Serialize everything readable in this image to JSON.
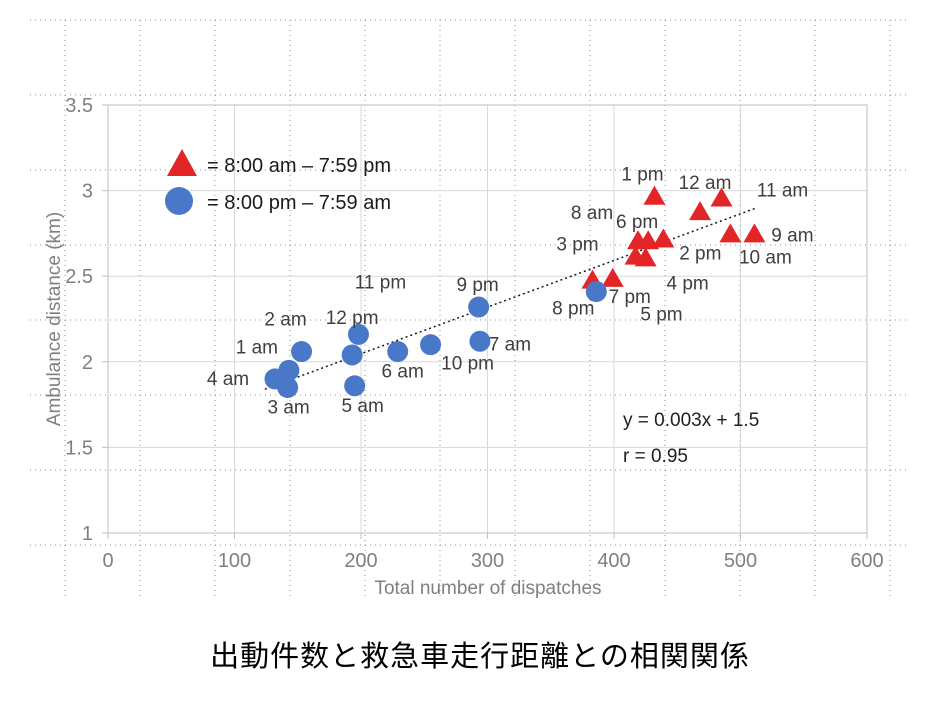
{
  "title": {
    "text": "出動件数と救急車走行距離との相関関係"
  },
  "chart_data": {
    "type": "scatter",
    "title": "出動件数と救急車走行距離との相関関係",
    "xlabel": "Total number of dispatches",
    "ylabel": "Ambulance distance (km)",
    "xlim": [
      0,
      600
    ],
    "ylim": [
      1,
      3.5
    ],
    "xticks": [
      0,
      100,
      200,
      300,
      400,
      500,
      600
    ],
    "yticks": [
      1,
      1.5,
      2,
      2.5,
      3,
      3.5
    ],
    "grid": "major gridlines on, dotted page grid overlay",
    "legend_position": "top-left inside plot",
    "legend": [
      {
        "marker": "triangle",
        "color": "#e42528",
        "label": "= 8:00 am – 7:59 pm"
      },
      {
        "marker": "circle",
        "color": "#4a78c8",
        "label": "= 8:00 pm – 7:59 am"
      }
    ],
    "trendline": {
      "style": "dotted",
      "color": "#1a1a1a",
      "equation": "y = 0.003x + 1.5",
      "r_text": "r = 0.95",
      "x1": 124,
      "y1": 1.84,
      "x2": 513,
      "y2": 2.9
    },
    "series": [
      {
        "name": "8:00 am – 7:59 pm",
        "marker": "triangle",
        "color": "#e42528",
        "points": [
          {
            "label": "8 am",
            "x": 419,
            "y": 2.71,
            "dx": -46,
            "dy": -28
          },
          {
            "label": "9 am",
            "x": 511,
            "y": 2.75,
            "dx": 38,
            "dy": 1
          },
          {
            "label": "10 am",
            "x": 492,
            "y": 2.75,
            "dx": 35,
            "dy": 23
          },
          {
            "label": "11 am",
            "x": 485,
            "y": 2.96,
            "dx": 61,
            "dy": -8
          },
          {
            "label": "12 am",
            "x": 468,
            "y": 2.88,
            "dx": 5,
            "dy": -29
          },
          {
            "label": "1 pm",
            "x": 432,
            "y": 2.97,
            "dx": -12,
            "dy": -22
          },
          {
            "label": "2 pm",
            "x": 439,
            "y": 2.72,
            "dx": 37,
            "dy": 14
          },
          {
            "label": "3 pm",
            "x": 417,
            "y": 2.62,
            "dx": -58,
            "dy": -12
          },
          {
            "label": "4 pm",
            "x": 425,
            "y": 2.61,
            "dx": 42,
            "dy": 25
          },
          {
            "label": "5 pm",
            "x": 383,
            "y": 2.48,
            "dx": 69,
            "dy": 34
          },
          {
            "label": "6 pm",
            "x": 427,
            "y": 2.71,
            "dx": -11,
            "dy": -19
          },
          {
            "label": "7 pm",
            "x": 399,
            "y": 2.49,
            "dx": 17,
            "dy": 18
          }
        ]
      },
      {
        "name": "8:00 pm – 7:59 am",
        "marker": "circle",
        "color": "#4a78c8",
        "points": [
          {
            "label": "8 pm",
            "x": 386,
            "y": 2.41,
            "dx": -23,
            "dy": 16
          },
          {
            "label": "9 pm",
            "x": 293,
            "y": 2.32,
            "dx": -1,
            "dy": -23
          },
          {
            "label": "10 pm",
            "x": 255,
            "y": 2.1,
            "dx": 37,
            "dy": 18
          },
          {
            "label": "11 pm",
            "x": 198,
            "y": 2.16,
            "dx": 22,
            "dy": -53
          },
          {
            "label": "12 pm",
            "x": 193,
            "y": 2.04,
            "dx": 0,
            "dy": -38
          },
          {
            "label": "1 am",
            "x": 143,
            "y": 1.95,
            "dx": -32,
            "dy": -24
          },
          {
            "label": "2 am",
            "x": 153,
            "y": 2.06,
            "dx": -16,
            "dy": -33
          },
          {
            "label": "3 am",
            "x": 142,
            "y": 1.85,
            "dx": 1,
            "dy": 19
          },
          {
            "label": "4 am",
            "x": 132,
            "y": 1.9,
            "dx": -47,
            "dy": -1
          },
          {
            "label": "5 am",
            "x": 195,
            "y": 1.86,
            "dx": 8,
            "dy": 19
          },
          {
            "label": "6 am",
            "x": 229,
            "y": 2.06,
            "dx": 5,
            "dy": 19
          },
          {
            "label": "7 am",
            "x": 294,
            "y": 2.12,
            "dx": 30,
            "dy": 2
          }
        ]
      }
    ]
  }
}
